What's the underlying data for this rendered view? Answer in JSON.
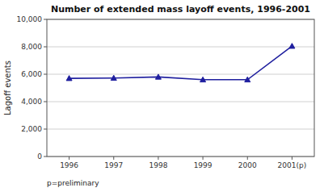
{
  "chart_data": {
    "type": "line",
    "title": "Number of extended mass layoff events, 1996-2001",
    "y_label": "Lagoff events",
    "annotations": [
      "p=preliminary"
    ],
    "categories": [
      "1996",
      "1997",
      "1998",
      "1999",
      "2000",
      "2001(p)"
    ],
    "values": [
      5700,
      5720,
      5800,
      5600,
      5600,
      8050
    ],
    "color": "#1f1f9f",
    "marker": "triangle",
    "ylim": [
      0,
      10000
    ],
    "yticks": [
      0,
      {
        "value": 2000,
        "label": "2,000"
      },
      {
        "value": 4000,
        "label": "4,000"
      },
      {
        "value": 6000,
        "label": "6,000"
      },
      {
        "value": 8000,
        "label": "8,000"
      },
      {
        "value": 10000,
        "label": "10,000"
      }
    ],
    "grid": true
  }
}
